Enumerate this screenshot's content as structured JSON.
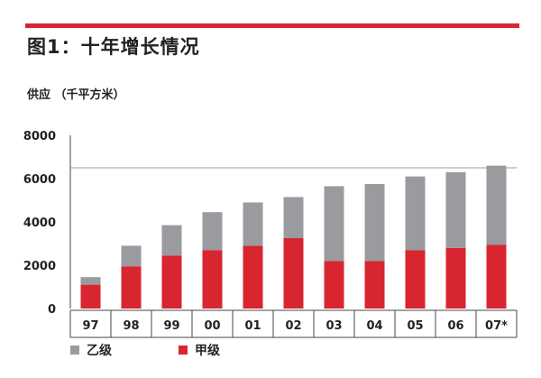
{
  "title": "图1：十年增长情况",
  "colors": {
    "accent": "#d7262f",
    "series_b": "#9a9b9f",
    "series_a": "#d7262f"
  },
  "legend": [
    {
      "label": "乙级",
      "color": "#9a9b9f"
    },
    {
      "label": "甲级",
      "color": "#d7262f"
    }
  ],
  "chart_data": {
    "type": "bar",
    "stacked": true,
    "title": "图1：十年增长情况",
    "ylabel": "供应 （千平方米）",
    "xlabel": "",
    "ylim": [
      0,
      8000
    ],
    "yticks": [
      0,
      2000,
      4000,
      6000,
      8000
    ],
    "grid": false,
    "legend_position": "bottom-left",
    "categories": [
      "97",
      "98",
      "99",
      "00",
      "01",
      "02",
      "03",
      "04",
      "05",
      "06",
      "07*"
    ],
    "series": [
      {
        "name": "甲级",
        "color": "#d7262f",
        "values": [
          1100,
          1950,
          2450,
          2700,
          2900,
          3250,
          2200,
          2200,
          2700,
          2800,
          2950
        ]
      },
      {
        "name": "乙级",
        "color": "#9a9b9f",
        "values": [
          350,
          950,
          1400,
          1750,
          2000,
          1900,
          3450,
          3550,
          3400,
          3500,
          3650
        ]
      }
    ],
    "reference_line": 6500
  }
}
